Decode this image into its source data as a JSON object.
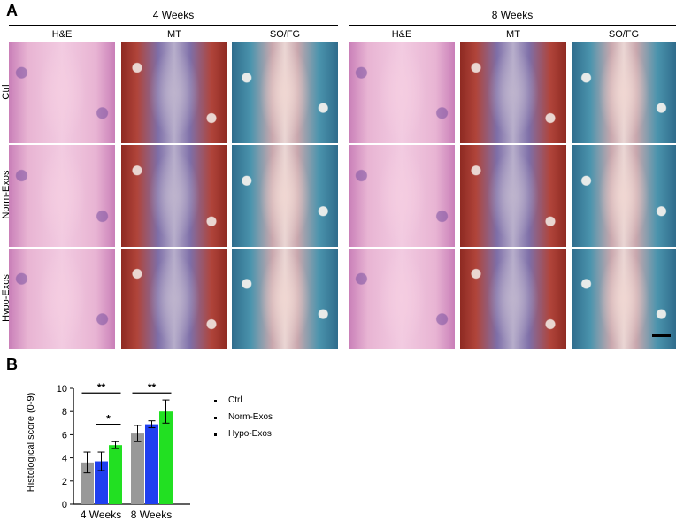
{
  "panel_a": {
    "letter": "A",
    "weeks": [
      "4 Weeks",
      "8 Weeks"
    ],
    "stains": [
      "H&E",
      "MT",
      "SO/FG"
    ],
    "rows": [
      "Ctrl",
      "Norm-Exos",
      "Hypo-Exos"
    ],
    "tile_types": [
      "he",
      "mt",
      "so"
    ]
  },
  "panel_b": {
    "letter": "B",
    "legend": [
      "Ctrl",
      "Norm-Exos",
      "Hypo-Exos"
    ],
    "significance": [
      "**",
      "*",
      "**"
    ]
  },
  "colors": {
    "ctrl": "#999999",
    "norm": "#1f3ff0",
    "hypo": "#22e022"
  },
  "chart_data": {
    "type": "bar",
    "categories": [
      "4 Weeks",
      "8 Weeks"
    ],
    "ylabel": "Histological score (0-9)",
    "ylim": [
      0,
      10
    ],
    "yticks": [
      0,
      2,
      4,
      6,
      8,
      10
    ],
    "series": [
      {
        "name": "Ctrl",
        "values": [
          3.6,
          6.1
        ],
        "errors": [
          0.9,
          0.7
        ]
      },
      {
        "name": "Norm-Exos",
        "values": [
          3.7,
          6.9
        ],
        "errors": [
          0.8,
          0.3
        ]
      },
      {
        "name": "Hypo-Exos",
        "values": [
          5.1,
          8.0
        ],
        "errors": [
          0.3,
          1.0
        ]
      }
    ],
    "significance": [
      {
        "label": "**",
        "category": 0,
        "from": 0,
        "to": 2,
        "y": 9.6
      },
      {
        "label": "*",
        "category": 0,
        "from": 1,
        "to": 2,
        "y": 6.9
      },
      {
        "label": "**",
        "category": 1,
        "from": 0,
        "to": 2,
        "y": 9.6
      }
    ],
    "legend_position": "right"
  }
}
